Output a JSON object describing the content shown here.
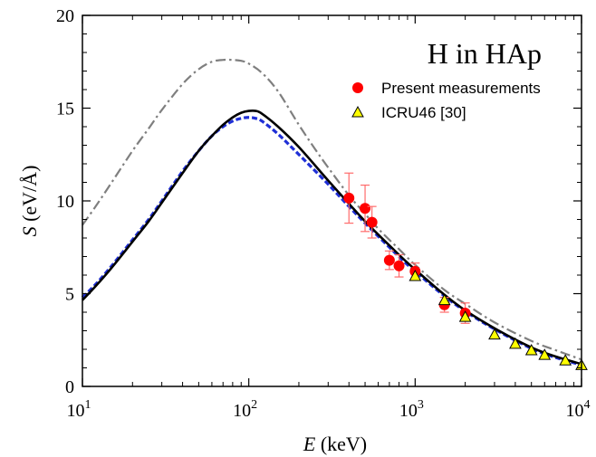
{
  "chart_data": {
    "type": "line",
    "title": "H in HAp",
    "xlabel": {
      "var": "E",
      "unit": " (keV)"
    },
    "ylabel": {
      "var": "S",
      "unit": " (eV/Å)"
    },
    "xscale": "log",
    "xlim": [
      10,
      10000
    ],
    "ylim": [
      0,
      20
    ],
    "x_ticks": [
      {
        "value": 10,
        "base": "10",
        "exp": "1"
      },
      {
        "value": 100,
        "base": "10",
        "exp": "2"
      },
      {
        "value": 1000,
        "base": "10",
        "exp": "3"
      },
      {
        "value": 10000,
        "base": "10",
        "exp": "4"
      }
    ],
    "y_ticks": [
      "0",
      "5",
      "10",
      "15",
      "20"
    ],
    "grid": false,
    "legend_position": "top-right",
    "series": [
      {
        "kind": "line",
        "style": "dash-dot",
        "color": "#7f7f7f",
        "x": [
          10,
          12,
          15,
          20,
          25,
          30,
          40,
          50,
          60,
          70,
          80,
          90,
          100,
          120,
          150,
          200,
          250,
          300,
          400,
          500,
          600,
          700,
          800,
          1000,
          1500,
          2000,
          3000,
          5000,
          7000,
          10000
        ],
        "y": [
          8.7,
          9.7,
          11.0,
          12.7,
          13.9,
          14.9,
          16.3,
          17.1,
          17.5,
          17.6,
          17.6,
          17.55,
          17.4,
          16.9,
          15.9,
          14.1,
          12.8,
          11.8,
          10.3,
          9.3,
          8.5,
          7.9,
          7.4,
          6.55,
          5.2,
          4.45,
          3.45,
          2.45,
          1.95,
          1.45
        ]
      },
      {
        "kind": "line",
        "style": "dashed",
        "color": "#1f2fd6",
        "x": [
          10,
          12,
          15,
          20,
          25,
          30,
          40,
          50,
          60,
          70,
          80,
          90,
          100,
          110,
          120,
          150,
          200,
          300,
          400,
          500,
          700,
          1000,
          2000,
          5000,
          10000
        ],
        "y": [
          4.8,
          5.5,
          6.5,
          7.9,
          9.0,
          10.0,
          11.6,
          12.7,
          13.5,
          14.0,
          14.3,
          14.45,
          14.5,
          14.45,
          14.3,
          13.6,
          12.5,
          10.9,
          9.7,
          8.8,
          7.5,
          6.2,
          4.05,
          2.05,
          1.15
        ]
      },
      {
        "kind": "line",
        "style": "solid",
        "color": "#000000",
        "x": [
          10,
          12,
          15,
          20,
          25,
          30,
          40,
          50,
          60,
          70,
          80,
          90,
          100,
          110,
          120,
          150,
          200,
          300,
          400,
          500,
          700,
          1000,
          2000,
          5000,
          10000
        ],
        "y": [
          4.65,
          5.4,
          6.4,
          7.8,
          8.9,
          9.9,
          11.5,
          12.7,
          13.5,
          14.1,
          14.5,
          14.75,
          14.85,
          14.85,
          14.7,
          14.0,
          12.9,
          11.1,
          9.85,
          8.9,
          7.6,
          6.3,
          4.1,
          2.1,
          1.2
        ]
      },
      {
        "kind": "scatter",
        "name": "Present measurements",
        "marker": "circle",
        "color": "#ff0000",
        "errcolor": "#ff6b6b",
        "x": [
          400,
          500,
          550,
          700,
          800,
          1000,
          1500,
          2000
        ],
        "y": [
          10.15,
          9.6,
          8.85,
          6.8,
          6.5,
          6.2,
          4.4,
          3.95
        ],
        "err": [
          1.35,
          1.25,
          0.85,
          0.5,
          0.6,
          0.45,
          0.4,
          0.55
        ]
      },
      {
        "kind": "scatter",
        "name": "ICRU46 [30]",
        "marker": "triangle",
        "color": "#ffff00",
        "edge": "#000000",
        "x": [
          1000,
          1500,
          2000,
          3000,
          4000,
          5000,
          6000,
          8000,
          10000
        ],
        "y": [
          5.95,
          4.65,
          3.75,
          2.8,
          2.3,
          1.95,
          1.7,
          1.4,
          1.15
        ]
      }
    ]
  }
}
